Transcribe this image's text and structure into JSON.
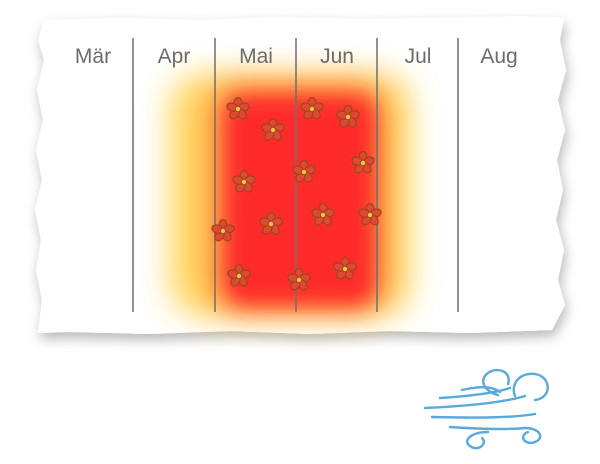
{
  "months": [
    "Mär",
    "Apr",
    "Mai",
    "Jun",
    "Jul",
    "Aug"
  ],
  "bloom_period": {
    "peak_start_month": "Mai",
    "peak_end_month": "Jun",
    "fade_start_month": "Apr",
    "fade_end_month": "Jul"
  },
  "colors": {
    "paper": "#ffffff",
    "divider": "#6f6f6f",
    "label": "#6b6b6b",
    "bloom_peak": "#ff2a2a",
    "bloom_edge": "#ffd24d",
    "blossom": "#c0392b",
    "wind": "#5aa9dd"
  },
  "icons": {
    "blossom": "cherry-blossom-icon",
    "wind": "wind-icon"
  }
}
